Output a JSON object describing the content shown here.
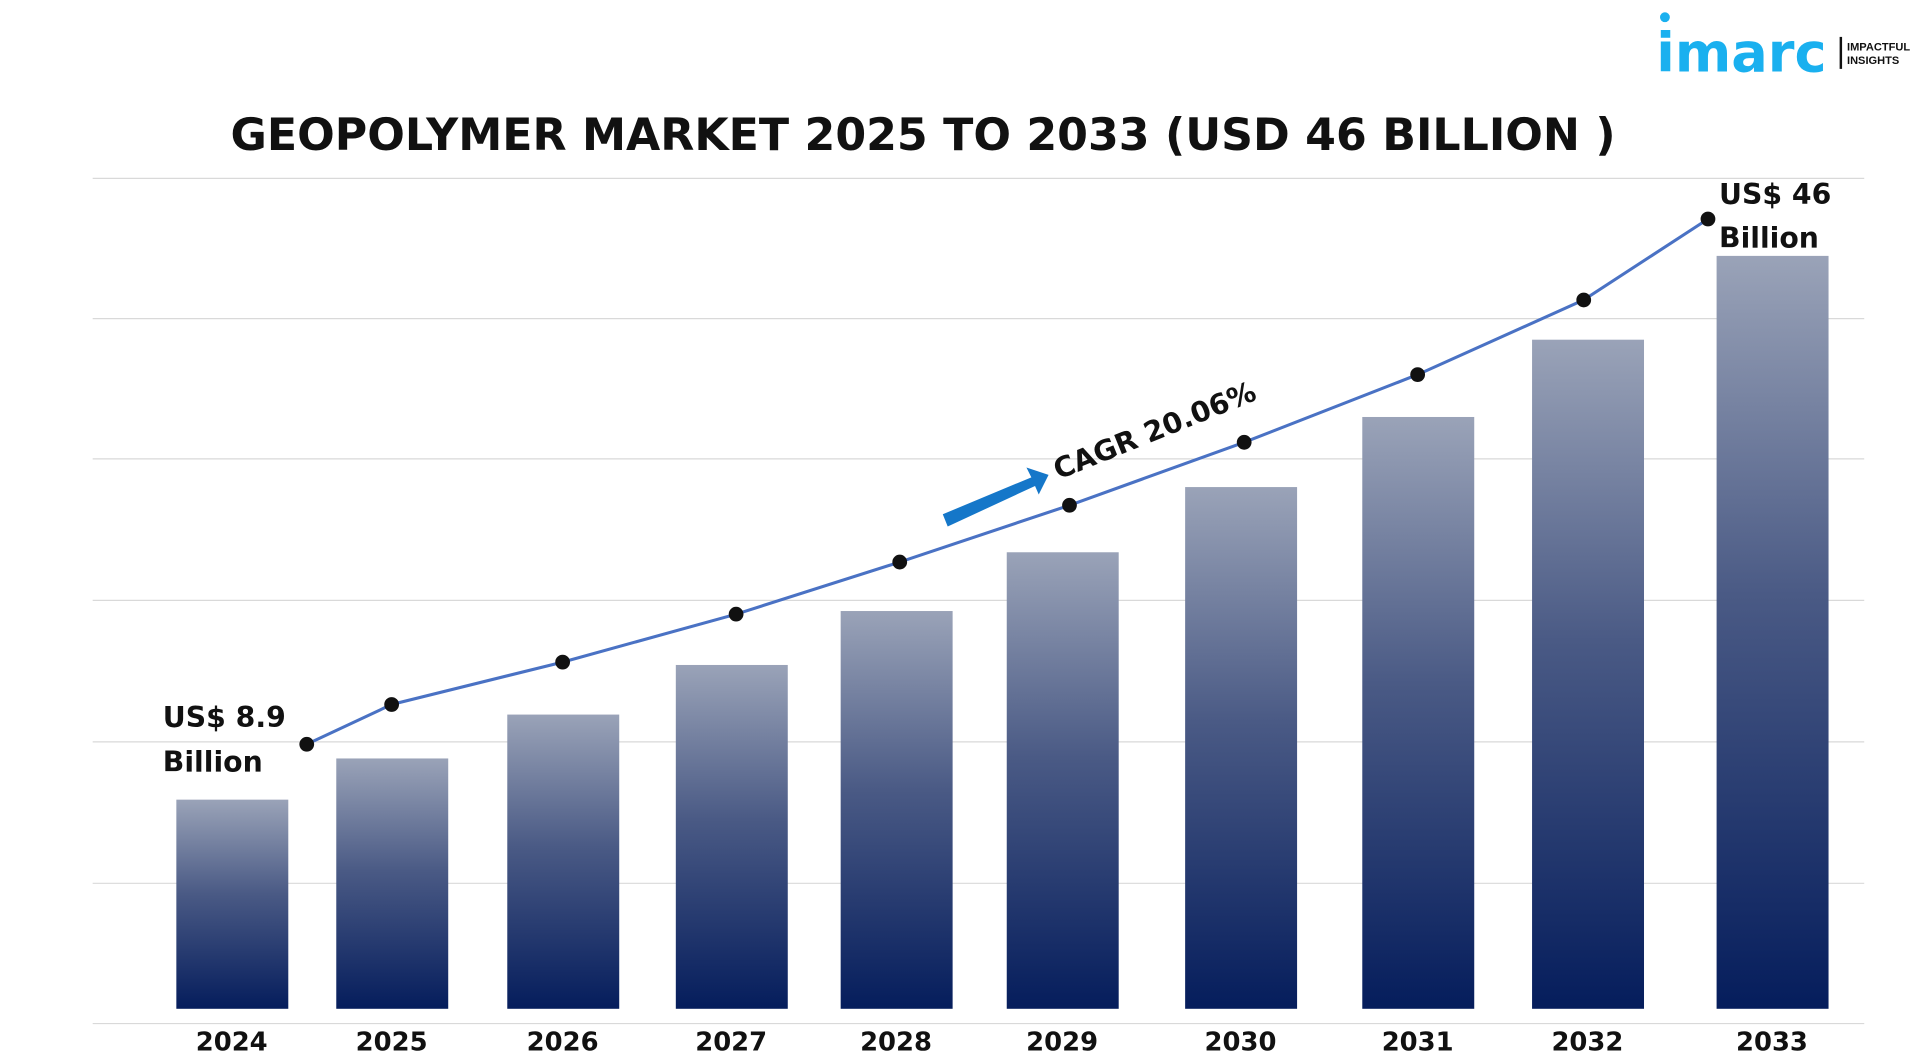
{
  "logo": {
    "brand": "imarc",
    "tagline_1": "IMPACTFUL",
    "tagline_2": "INSIGHTS",
    "color": "#1ab0ef"
  },
  "chart_data": {
    "type": "bar",
    "title": "GEOPOLYMER MARKET 2025 TO 2033 (USD 46 BILLION )",
    "categories": [
      "2024",
      "2025",
      "2026",
      "2027",
      "2028",
      "2029",
      "2030",
      "2031",
      "2032",
      "2033"
    ],
    "values": [
      8.9,
      10.7,
      12.8,
      15.4,
      18.5,
      22.2,
      26.7,
      32.0,
      38.4,
      46.0
    ],
    "unit": "USD Billion",
    "overlay_line": true,
    "grid": true,
    "xlabel": "",
    "ylabel": "",
    "annotations": {
      "start_line1": "US$ 8.9",
      "start_line2": "Billion",
      "end_line1": "US$ 46",
      "end_line2": "Billion",
      "cagr": "CAGR 20.06%"
    },
    "colors": {
      "bar_top": "#9aa3b8",
      "bar_bottom": "#051d5c",
      "line": "#4a72c4",
      "marker": "#111111",
      "arrow": "#1577c9",
      "grid": "#d9d9d9"
    }
  }
}
